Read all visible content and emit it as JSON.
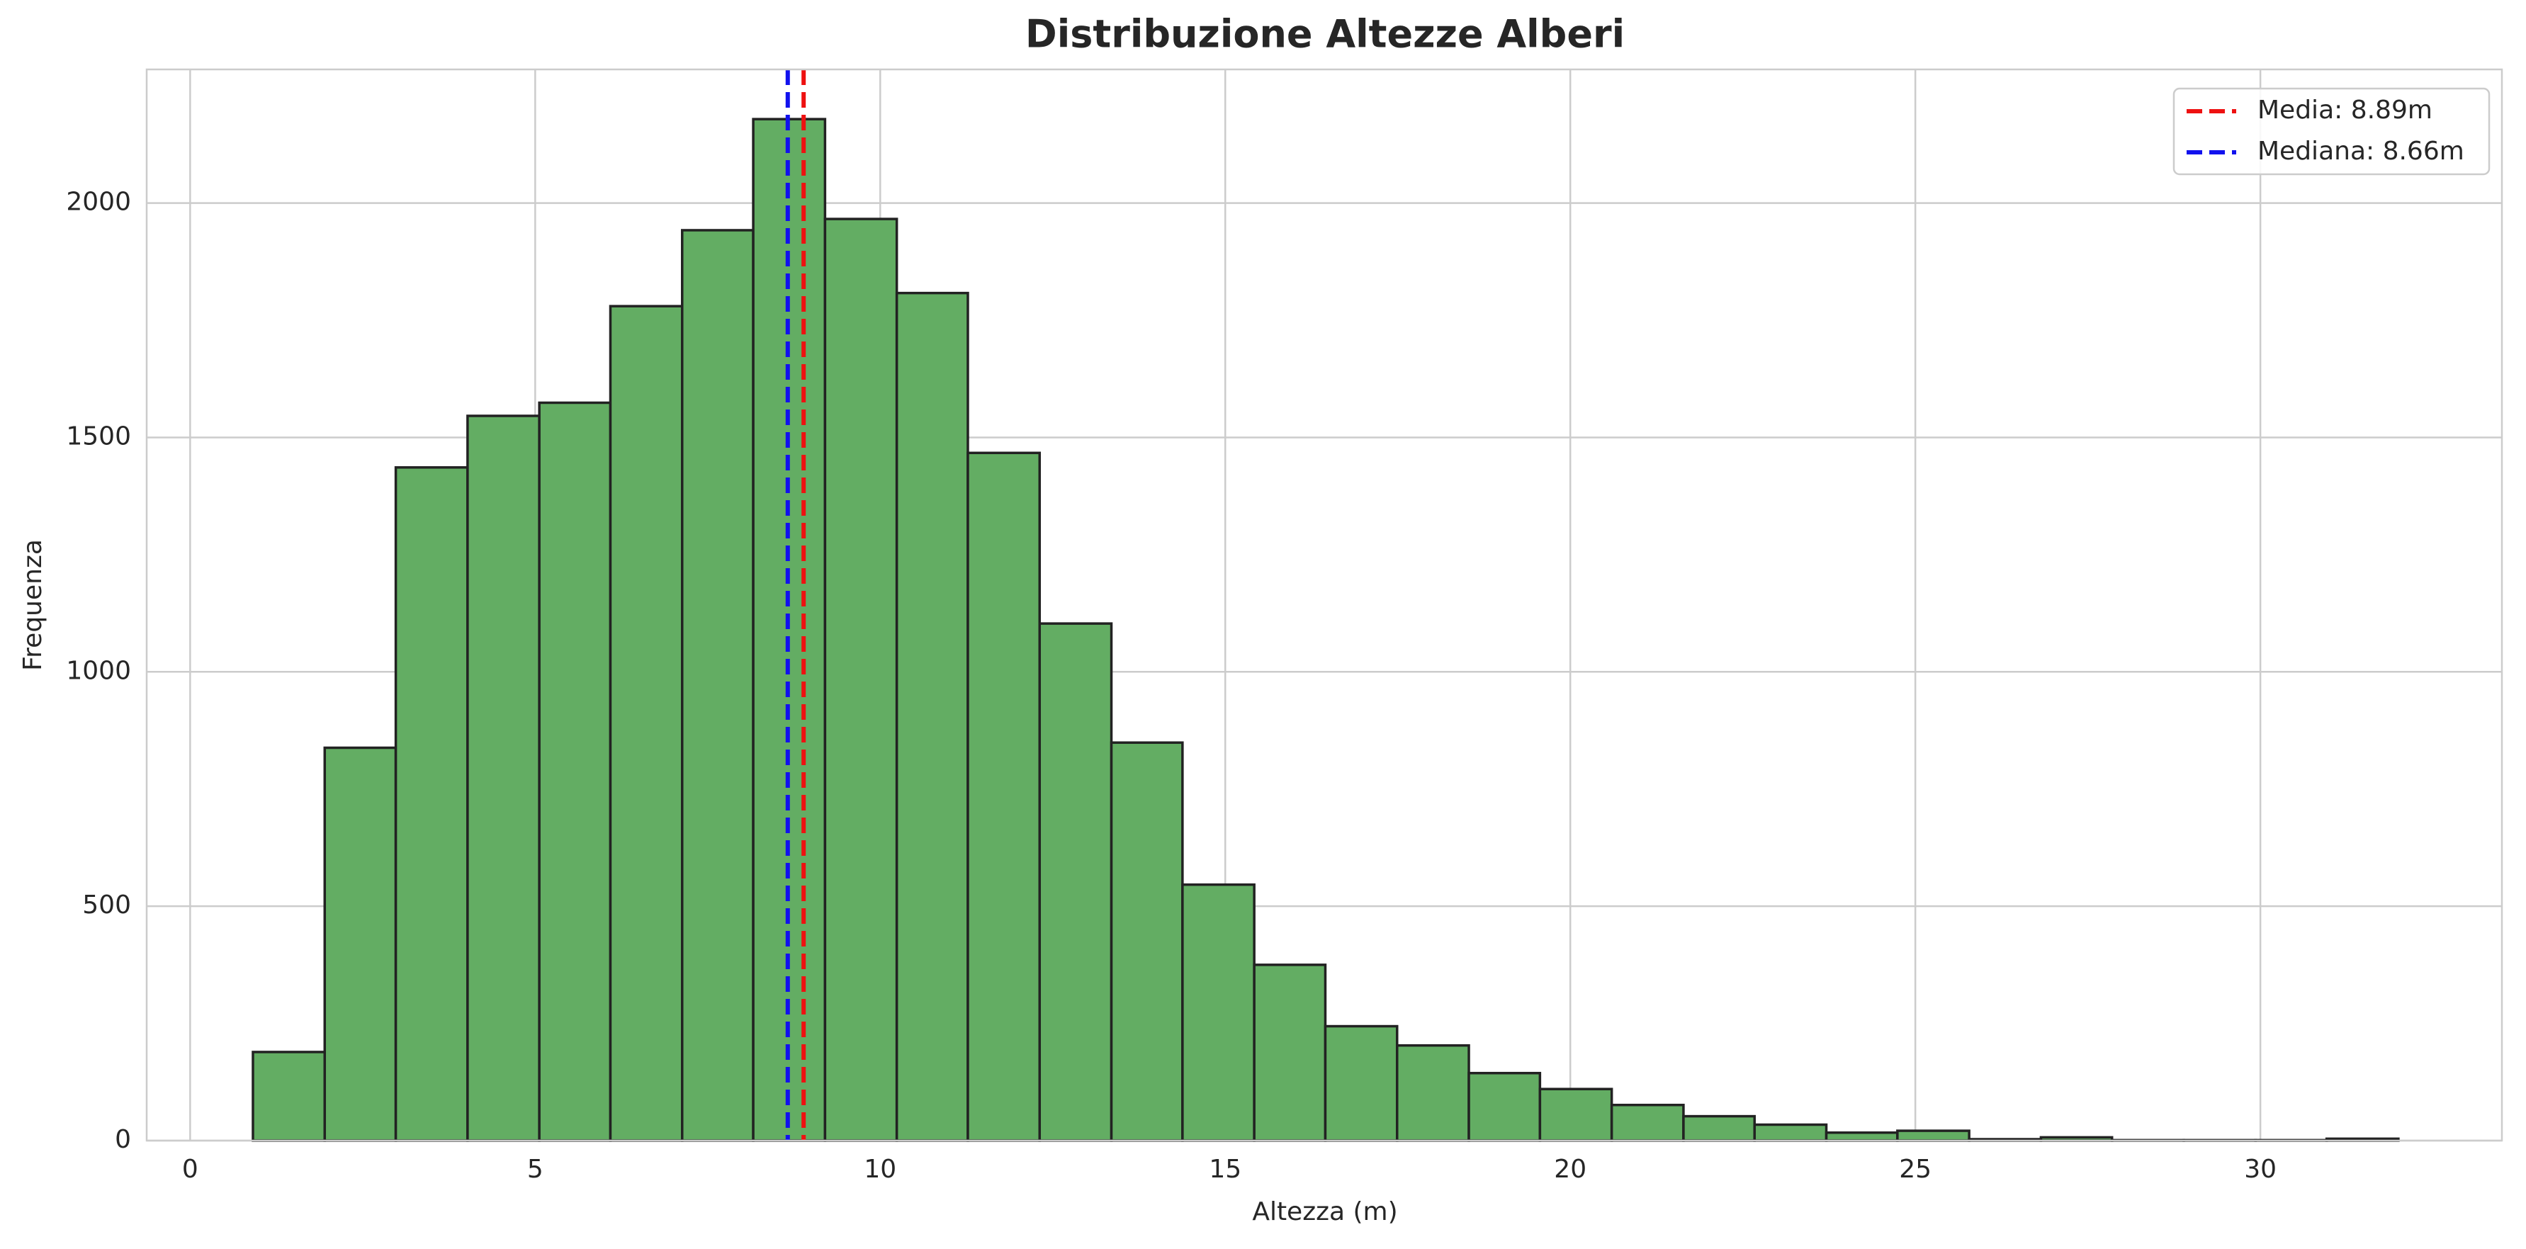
{
  "chart_data": {
    "type": "histogram",
    "title": "Distribuzione Altezze Alberi",
    "x_label": "Altezza (m)",
    "y_label": "Frequenza",
    "bins": [
      0.91,
      1.95,
      2.98,
      4.02,
      5.06,
      6.09,
      7.13,
      8.16,
      9.2,
      10.24,
      11.27,
      12.31,
      13.35,
      14.38,
      15.42,
      16.45,
      17.49,
      18.53,
      19.56,
      20.6,
      21.64,
      22.67,
      23.71,
      24.74,
      25.78,
      26.82,
      27.85,
      28.89,
      29.93,
      30.96,
      32.0
    ],
    "values": [
      189,
      838,
      1436,
      1546,
      1574,
      1780,
      1942,
      2179,
      1966,
      1808,
      1467,
      1103,
      849,
      546,
      375,
      244,
      203,
      144,
      110,
      76,
      52,
      34,
      17,
      21,
      3,
      7,
      1,
      1,
      1,
      4
    ],
    "color": "#63ad63",
    "edge_color": "#222222",
    "xlim": [
      -0.63,
      33.5
    ],
    "ylim": [
      0,
      2285
    ],
    "xticks": [
      0,
      5,
      10,
      15,
      20,
      25,
      30
    ],
    "yticks": [
      0,
      500,
      1000,
      1500,
      2000
    ],
    "grid": true,
    "legend": "upper right",
    "vlines": [
      {
        "name": "Media: 8.89m",
        "value": 8.89,
        "color": "#ee1111"
      },
      {
        "name": "Mediana: 8.66m",
        "value": 8.66,
        "color": "#1111ee"
      }
    ]
  }
}
